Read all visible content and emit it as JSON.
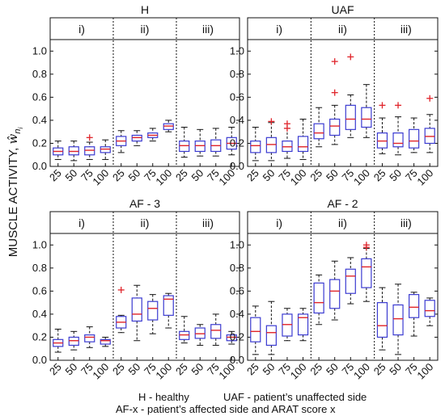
{
  "figure": {
    "ylabel_text": "MUSCLE ACTIVITY, ",
    "ylabel_symbol": "ŵ",
    "ylabel_sub": "n",
    "ylabel_subsub": "i",
    "caption_line1_left": "H - healthy",
    "caption_line1_right": "UAF - patient’s unaffected side",
    "caption_line2": "AF-x - patient’s affected side and ARAT score x"
  },
  "colors": {
    "box": "#3b3bd1",
    "median": "#e0242a",
    "outlier": "#e0242a",
    "whisker": "#111111",
    "axis": "#111111"
  },
  "chart_data": [
    {
      "type": "box",
      "title": "H",
      "groups": [
        "i)",
        "ii)",
        "iii)"
      ],
      "categories": [
        "25",
        "50",
        "75",
        "100"
      ],
      "ylim": [
        0,
        1.1
      ],
      "yticks": [
        "0.0",
        "0.2",
        "0.4",
        "0.6",
        "0.8",
        "1.0"
      ],
      "boxes": [
        {
          "group": 0,
          "cat": "25",
          "wlo": 0.06,
          "q1": 0.1,
          "med": 0.13,
          "q3": 0.16,
          "whi": 0.22,
          "outliers": []
        },
        {
          "group": 0,
          "cat": "50",
          "wlo": 0.05,
          "q1": 0.1,
          "med": 0.13,
          "q3": 0.17,
          "whi": 0.22,
          "outliers": []
        },
        {
          "group": 0,
          "cat": "75",
          "wlo": 0.06,
          "q1": 0.1,
          "med": 0.14,
          "q3": 0.17,
          "whi": 0.21,
          "outliers": [
            0.25
          ]
        },
        {
          "group": 0,
          "cat": "100",
          "wlo": 0.06,
          "q1": 0.12,
          "med": 0.15,
          "q3": 0.17,
          "whi": 0.23,
          "outliers": []
        },
        {
          "group": 1,
          "cat": "25",
          "wlo": 0.12,
          "q1": 0.18,
          "med": 0.22,
          "q3": 0.26,
          "whi": 0.31,
          "outliers": []
        },
        {
          "group": 1,
          "cat": "50",
          "wlo": 0.18,
          "q1": 0.22,
          "med": 0.25,
          "q3": 0.27,
          "whi": 0.31,
          "outliers": []
        },
        {
          "group": 1,
          "cat": "75",
          "wlo": 0.22,
          "q1": 0.25,
          "med": 0.27,
          "q3": 0.29,
          "whi": 0.33,
          "outliers": []
        },
        {
          "group": 1,
          "cat": "100",
          "wlo": 0.3,
          "q1": 0.32,
          "med": 0.35,
          "q3": 0.37,
          "whi": 0.4,
          "outliers": []
        },
        {
          "group": 2,
          "cat": "25",
          "wlo": 0.08,
          "q1": 0.13,
          "med": 0.18,
          "q3": 0.22,
          "whi": 0.34,
          "outliers": []
        },
        {
          "group": 2,
          "cat": "50",
          "wlo": 0.09,
          "q1": 0.13,
          "med": 0.18,
          "q3": 0.22,
          "whi": 0.32,
          "outliers": []
        },
        {
          "group": 2,
          "cat": "75",
          "wlo": 0.09,
          "q1": 0.13,
          "med": 0.18,
          "q3": 0.23,
          "whi": 0.33,
          "outliers": []
        },
        {
          "group": 2,
          "cat": "100",
          "wlo": 0.1,
          "q1": 0.15,
          "med": 0.2,
          "q3": 0.25,
          "whi": 0.34,
          "outliers": []
        }
      ]
    },
    {
      "type": "box",
      "title": "UAF",
      "groups": [
        "i)",
        "ii)",
        "iii)"
      ],
      "categories": [
        "25",
        "50",
        "75",
        "100"
      ],
      "ylim": [
        0,
        1.1
      ],
      "yticks": [
        "0.0",
        "0.2",
        "0.4",
        "0.6",
        "0.8",
        "1.0"
      ],
      "boxes": [
        {
          "group": 0,
          "cat": "25",
          "wlo": 0.05,
          "q1": 0.12,
          "med": 0.18,
          "q3": 0.22,
          "whi": 0.34,
          "outliers": []
        },
        {
          "group": 0,
          "cat": "50",
          "wlo": 0.05,
          "q1": 0.12,
          "med": 0.19,
          "q3": 0.25,
          "whi": 0.38,
          "outliers": [
            0.39
          ]
        },
        {
          "group": 0,
          "cat": "75",
          "wlo": 0.07,
          "q1": 0.13,
          "med": 0.17,
          "q3": 0.22,
          "whi": 0.33,
          "outliers": [
            0.33,
            0.37
          ]
        },
        {
          "group": 0,
          "cat": "100",
          "wlo": 0.06,
          "q1": 0.13,
          "med": 0.17,
          "q3": 0.26,
          "whi": 0.41,
          "outliers": []
        },
        {
          "group": 1,
          "cat": "25",
          "wlo": 0.17,
          "q1": 0.24,
          "med": 0.29,
          "q3": 0.37,
          "whi": 0.51,
          "outliers": []
        },
        {
          "group": 1,
          "cat": "50",
          "wlo": 0.19,
          "q1": 0.27,
          "med": 0.35,
          "q3": 0.41,
          "whi": 0.53,
          "outliers": [
            0.64,
            0.91
          ]
        },
        {
          "group": 1,
          "cat": "75",
          "wlo": 0.25,
          "q1": 0.32,
          "med": 0.41,
          "q3": 0.53,
          "whi": 0.62,
          "outliers": [
            0.95
          ]
        },
        {
          "group": 1,
          "cat": "100",
          "wlo": 0.25,
          "q1": 0.34,
          "med": 0.41,
          "q3": 0.51,
          "whi": 0.71,
          "outliers": []
        },
        {
          "group": 2,
          "cat": "25",
          "wlo": 0.11,
          "q1": 0.16,
          "med": 0.22,
          "q3": 0.29,
          "whi": 0.42,
          "outliers": [
            0.53
          ]
        },
        {
          "group": 2,
          "cat": "50",
          "wlo": 0.1,
          "q1": 0.17,
          "med": 0.2,
          "q3": 0.29,
          "whi": 0.43,
          "outliers": [
            0.53
          ]
        },
        {
          "group": 2,
          "cat": "75",
          "wlo": 0.12,
          "q1": 0.16,
          "med": 0.22,
          "q3": 0.32,
          "whi": 0.42,
          "outliers": []
        },
        {
          "group": 2,
          "cat": "100",
          "wlo": 0.12,
          "q1": 0.2,
          "med": 0.26,
          "q3": 0.33,
          "whi": 0.45,
          "outliers": [
            0.59
          ]
        }
      ]
    },
    {
      "type": "box",
      "title": "AF - 3",
      "groups": [
        "i)",
        "ii)",
        "iii)"
      ],
      "categories": [
        "25",
        "50",
        "75",
        "100"
      ],
      "ylim": [
        0,
        1.1
      ],
      "yticks": [
        "0.0",
        "0.2",
        "0.4",
        "0.6",
        "0.8",
        "1.0"
      ],
      "boxes": [
        {
          "group": 0,
          "cat": "25",
          "wlo": 0.07,
          "q1": 0.12,
          "med": 0.15,
          "q3": 0.18,
          "whi": 0.27,
          "outliers": []
        },
        {
          "group": 0,
          "cat": "50",
          "wlo": 0.09,
          "q1": 0.13,
          "med": 0.17,
          "q3": 0.2,
          "whi": 0.25,
          "outliers": []
        },
        {
          "group": 0,
          "cat": "75",
          "wlo": 0.11,
          "q1": 0.16,
          "med": 0.2,
          "q3": 0.22,
          "whi": 0.29,
          "outliers": []
        },
        {
          "group": 0,
          "cat": "100",
          "wlo": 0.12,
          "q1": 0.14,
          "med": 0.17,
          "q3": 0.18,
          "whi": 0.2,
          "outliers": []
        },
        {
          "group": 1,
          "cat": "25",
          "wlo": 0.24,
          "q1": 0.28,
          "med": 0.33,
          "q3": 0.38,
          "whi": 0.39,
          "outliers": [
            0.61
          ]
        },
        {
          "group": 1,
          "cat": "50",
          "wlo": 0.17,
          "q1": 0.34,
          "med": 0.4,
          "q3": 0.54,
          "whi": 0.65,
          "outliers": []
        },
        {
          "group": 1,
          "cat": "75",
          "wlo": 0.23,
          "q1": 0.35,
          "med": 0.45,
          "q3": 0.51,
          "whi": 0.57,
          "outliers": []
        },
        {
          "group": 1,
          "cat": "100",
          "wlo": 0.28,
          "q1": 0.39,
          "med": 0.53,
          "q3": 0.56,
          "whi": 0.58,
          "outliers": []
        },
        {
          "group": 2,
          "cat": "25",
          "wlo": 0.15,
          "q1": 0.18,
          "med": 0.22,
          "q3": 0.25,
          "whi": 0.38,
          "outliers": []
        },
        {
          "group": 2,
          "cat": "50",
          "wlo": 0.13,
          "q1": 0.19,
          "med": 0.23,
          "q3": 0.28,
          "whi": 0.31,
          "outliers": []
        },
        {
          "group": 2,
          "cat": "75",
          "wlo": 0.13,
          "q1": 0.19,
          "med": 0.26,
          "q3": 0.31,
          "whi": 0.4,
          "outliers": []
        },
        {
          "group": 2,
          "cat": "100",
          "wlo": 0.14,
          "q1": 0.17,
          "med": 0.2,
          "q3": 0.22,
          "whi": 0.25,
          "outliers": []
        }
      ]
    },
    {
      "type": "box",
      "title": "AF - 2",
      "groups": [
        "i)",
        "ii)",
        "iii)"
      ],
      "categories": [
        "25",
        "50",
        "75",
        "100"
      ],
      "ylim": [
        0,
        1.1
      ],
      "yticks": [
        "0.0",
        "0.2",
        "0.4",
        "0.6",
        "0.8",
        "1.0"
      ],
      "boxes": [
        {
          "group": 0,
          "cat": "25",
          "wlo": 0.05,
          "q1": 0.16,
          "med": 0.25,
          "q3": 0.37,
          "whi": 0.47,
          "outliers": []
        },
        {
          "group": 0,
          "cat": "50",
          "wlo": 0.05,
          "q1": 0.13,
          "med": 0.24,
          "q3": 0.3,
          "whi": 0.51,
          "outliers": []
        },
        {
          "group": 0,
          "cat": "75",
          "wlo": 0.17,
          "q1": 0.21,
          "med": 0.31,
          "q3": 0.4,
          "whi": 0.45,
          "outliers": []
        },
        {
          "group": 0,
          "cat": "100",
          "wlo": 0.17,
          "q1": 0.22,
          "med": 0.37,
          "q3": 0.4,
          "whi": 0.45,
          "outliers": []
        },
        {
          "group": 1,
          "cat": "25",
          "wlo": 0.31,
          "q1": 0.41,
          "med": 0.5,
          "q3": 0.67,
          "whi": 0.74,
          "outliers": []
        },
        {
          "group": 1,
          "cat": "50",
          "wlo": 0.35,
          "q1": 0.45,
          "med": 0.6,
          "q3": 0.7,
          "whi": 0.86,
          "outliers": []
        },
        {
          "group": 1,
          "cat": "75",
          "wlo": 0.49,
          "q1": 0.58,
          "med": 0.73,
          "q3": 0.79,
          "whi": 0.89,
          "outliers": []
        },
        {
          "group": 1,
          "cat": "100",
          "wlo": 0.51,
          "q1": 0.63,
          "med": 0.81,
          "q3": 0.88,
          "whi": 0.97,
          "outliers": [
            0.98,
            1.0
          ]
        },
        {
          "group": 2,
          "cat": "25",
          "wlo": 0.09,
          "q1": 0.2,
          "med": 0.3,
          "q3": 0.5,
          "whi": 0.63,
          "outliers": []
        },
        {
          "group": 2,
          "cat": "50",
          "wlo": 0.05,
          "q1": 0.22,
          "med": 0.36,
          "q3": 0.48,
          "whi": 0.66,
          "outliers": []
        },
        {
          "group": 2,
          "cat": "75",
          "wlo": 0.21,
          "q1": 0.37,
          "med": 0.46,
          "q3": 0.57,
          "whi": 0.59,
          "outliers": []
        },
        {
          "group": 2,
          "cat": "100",
          "wlo": 0.3,
          "q1": 0.38,
          "med": 0.43,
          "q3": 0.52,
          "whi": 0.54,
          "outliers": []
        }
      ]
    }
  ]
}
